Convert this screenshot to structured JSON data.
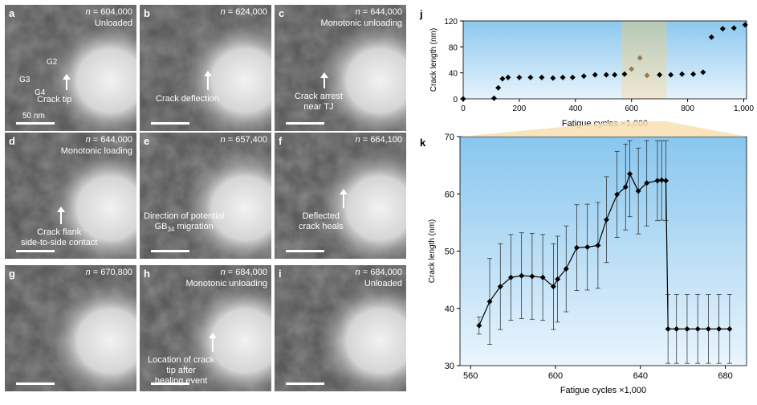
{
  "panels": [
    {
      "label": "a",
      "n": "604,000",
      "title": "Unloaded",
      "annotation": "Crack tip",
      "scale": "50 nm",
      "grains": [
        "G2",
        "G3",
        "G4"
      ]
    },
    {
      "label": "b",
      "n": "624,000",
      "title": "",
      "annotation": "Crack deflection"
    },
    {
      "label": "c",
      "n": "644,000",
      "title": "Monotonic unloading",
      "annotation": "Crack arrest\nnear TJ"
    },
    {
      "label": "d",
      "n": "644,000",
      "title": "Monotonic loading",
      "annotation": "Crack flank\nside-to-side contact"
    },
    {
      "label": "e",
      "n": "657,400",
      "title": "",
      "annotation": "Direction of potential\nGB34 migration"
    },
    {
      "label": "f",
      "n": "664,100",
      "title": "",
      "annotation": "Deflected\ncrack heals"
    },
    {
      "label": "g",
      "n": "670,800",
      "title": "",
      "annotation": ""
    },
    {
      "label": "h",
      "n": "684,000",
      "title": "Monotonic unloading",
      "annotation": "Location of crack\ntip after\nhealing event"
    },
    {
      "label": "i",
      "n": "684,000",
      "title": "Unloaded",
      "annotation": ""
    }
  ],
  "n_prefix": "n = ",
  "chart_data": [
    {
      "panel_label": "j",
      "type": "scatter",
      "xlabel": "Fatigue cycles ×1,000",
      "ylabel": "Crack length (nm)",
      "xlim": [
        0,
        1010
      ],
      "ylim": [
        0,
        120
      ],
      "xticks": [
        0,
        200,
        400,
        600,
        800,
        1000
      ],
      "xticklabels": [
        "0",
        "200",
        "400",
        "600",
        "800",
        "1,000"
      ],
      "yticks": [
        0,
        40,
        80,
        120
      ],
      "highlight_range": [
        565,
        725
      ],
      "points": [
        {
          "x": 0,
          "y": 0
        },
        {
          "x": 110,
          "y": 1
        },
        {
          "x": 125,
          "y": 17
        },
        {
          "x": 140,
          "y": 31
        },
        {
          "x": 160,
          "y": 33
        },
        {
          "x": 200,
          "y": 33
        },
        {
          "x": 240,
          "y": 33
        },
        {
          "x": 280,
          "y": 33
        },
        {
          "x": 320,
          "y": 32
        },
        {
          "x": 355,
          "y": 33
        },
        {
          "x": 390,
          "y": 33
        },
        {
          "x": 430,
          "y": 35
        },
        {
          "x": 470,
          "y": 37
        },
        {
          "x": 510,
          "y": 37
        },
        {
          "x": 540,
          "y": 37
        },
        {
          "x": 575,
          "y": 38
        },
        {
          "x": 600,
          "y": 46
        },
        {
          "x": 630,
          "y": 63
        },
        {
          "x": 655,
          "y": 36
        },
        {
          "x": 700,
          "y": 37
        },
        {
          "x": 740,
          "y": 37
        },
        {
          "x": 780,
          "y": 38
        },
        {
          "x": 820,
          "y": 38
        },
        {
          "x": 855,
          "y": 41
        },
        {
          "x": 885,
          "y": 95
        },
        {
          "x": 925,
          "y": 108
        },
        {
          "x": 965,
          "y": 109
        },
        {
          "x": 1005,
          "y": 114
        }
      ],
      "highlight_points": [
        {
          "x": 600,
          "y": 46
        },
        {
          "x": 630,
          "y": 63
        },
        {
          "x": 655,
          "y": 36
        }
      ]
    },
    {
      "panel_label": "k",
      "type": "line",
      "xlabel": "Fatigue cycles ×1,000",
      "ylabel": "Crack length (nm)",
      "xlim": [
        555,
        690
      ],
      "ylim": [
        30,
        70
      ],
      "xticks": [
        560,
        600,
        640,
        680
      ],
      "yticks": [
        30,
        40,
        50,
        60,
        70
      ],
      "points": [
        {
          "x": 564,
          "y": 37.0,
          "err": 1.5
        },
        {
          "x": 569,
          "y": 41.2,
          "err": 7.5
        },
        {
          "x": 574,
          "y": 43.8,
          "err": 7.5
        },
        {
          "x": 579,
          "y": 45.4,
          "err": 7.5
        },
        {
          "x": 584,
          "y": 45.7,
          "err": 7.5
        },
        {
          "x": 589,
          "y": 45.6,
          "err": 7.5
        },
        {
          "x": 594,
          "y": 45.4,
          "err": 7.5
        },
        {
          "x": 599,
          "y": 43.8,
          "err": 7.5
        },
        {
          "x": 601,
          "y": 45.1,
          "err": 7.5
        },
        {
          "x": 605,
          "y": 46.9,
          "err": 7.5
        },
        {
          "x": 610,
          "y": 50.6,
          "err": 7.5
        },
        {
          "x": 615,
          "y": 50.7,
          "err": 7.5
        },
        {
          "x": 620,
          "y": 51.0,
          "err": 7.5
        },
        {
          "x": 624,
          "y": 55.5,
          "err": 7.5
        },
        {
          "x": 629,
          "y": 59.9,
          "err": 7.5
        },
        {
          "x": 633,
          "y": 61.2,
          "err": 7.5
        },
        {
          "x": 635,
          "y": 63.5,
          "err": 7.5
        },
        {
          "x": 639,
          "y": 60.5,
          "err": 7.5
        },
        {
          "x": 643,
          "y": 61.9,
          "err": 7.5
        },
        {
          "x": 648,
          "y": 62.3,
          "err": 7.0
        },
        {
          "x": 650,
          "y": 62.4,
          "err": 7.0
        },
        {
          "x": 652,
          "y": 62.3,
          "err": 7.0
        },
        {
          "x": 653,
          "y": 36.4,
          "err": 6.0
        },
        {
          "x": 657,
          "y": 36.4,
          "err": 6.0
        },
        {
          "x": 662,
          "y": 36.4,
          "err": 6.0
        },
        {
          "x": 667,
          "y": 36.4,
          "err": 6.0
        },
        {
          "x": 672,
          "y": 36.4,
          "err": 6.0
        },
        {
          "x": 677,
          "y": 36.4,
          "err": 6.0
        },
        {
          "x": 682,
          "y": 36.4,
          "err": 6.0
        }
      ]
    }
  ]
}
